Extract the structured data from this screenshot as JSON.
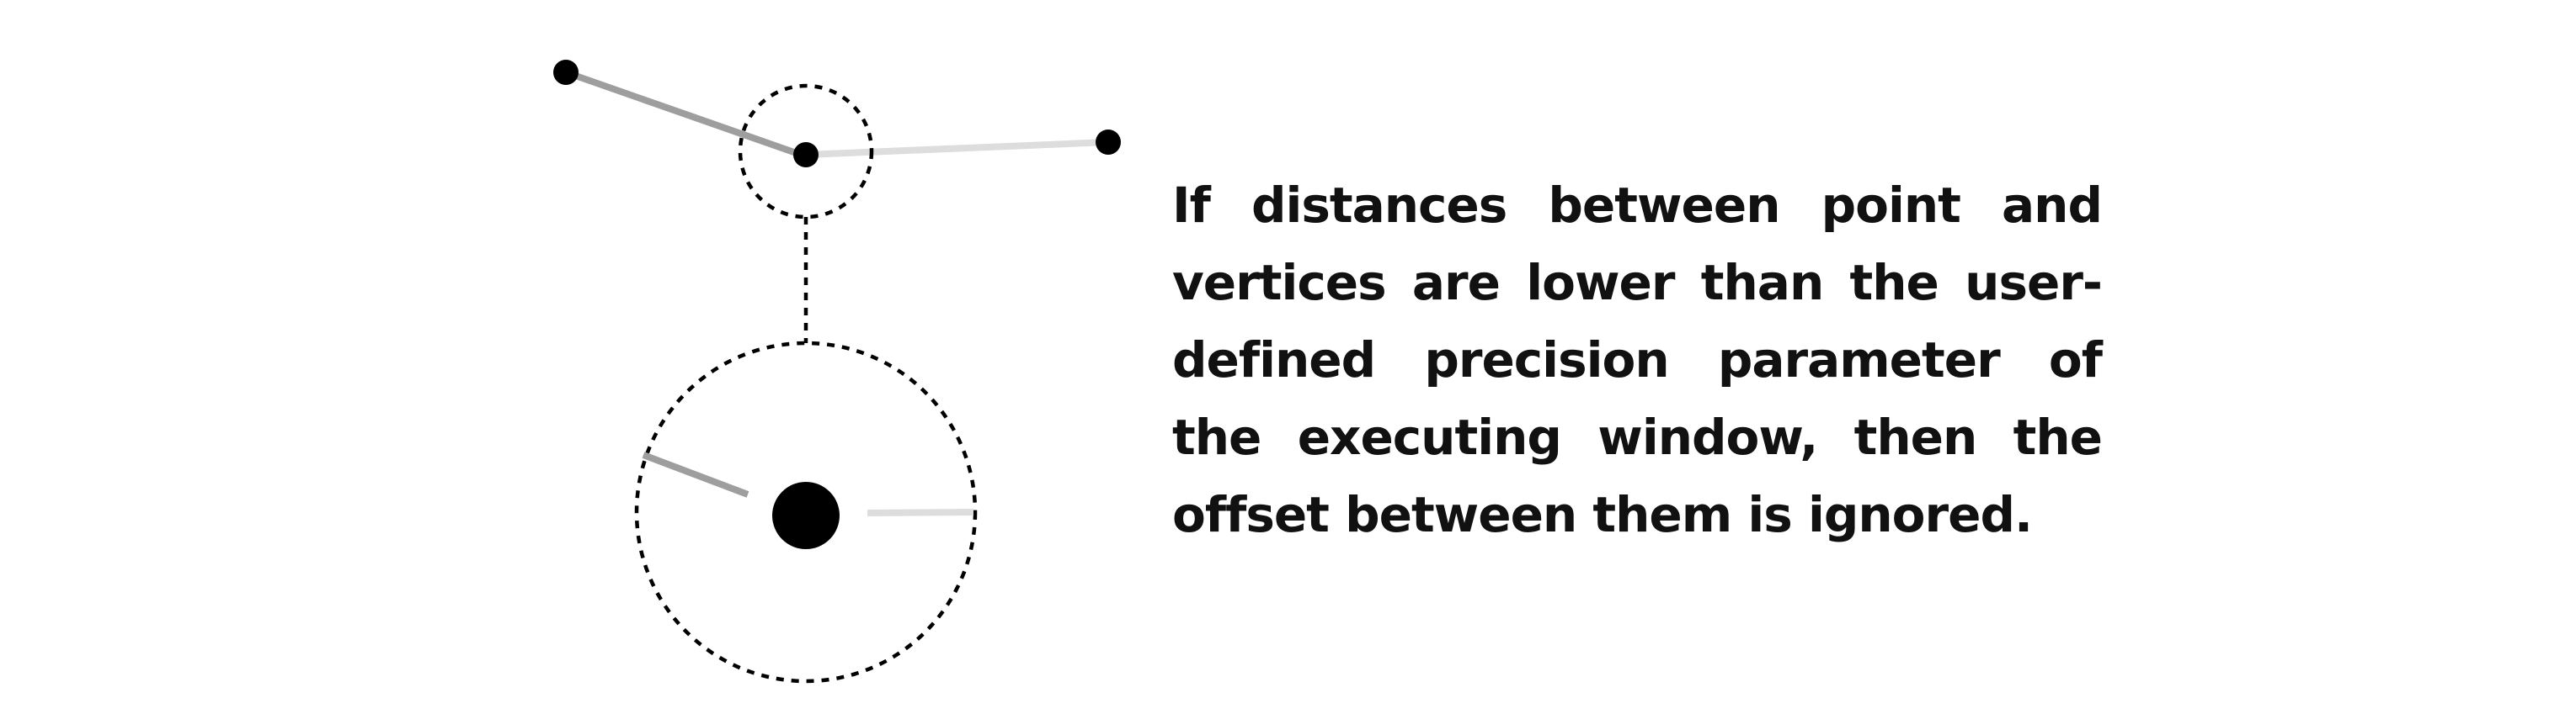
{
  "caption": {
    "text": "If distances between point and verti­ces are lower than the user-defined precision parameter of the executing window, then the offset between them is ignored."
  },
  "colors": {
    "background": "#ffffff",
    "vertex": "#000000",
    "edge_dark": "#9e9e9e",
    "edge_light": "#dddddd",
    "dashed_outline": "#000000",
    "text": "#111111"
  }
}
